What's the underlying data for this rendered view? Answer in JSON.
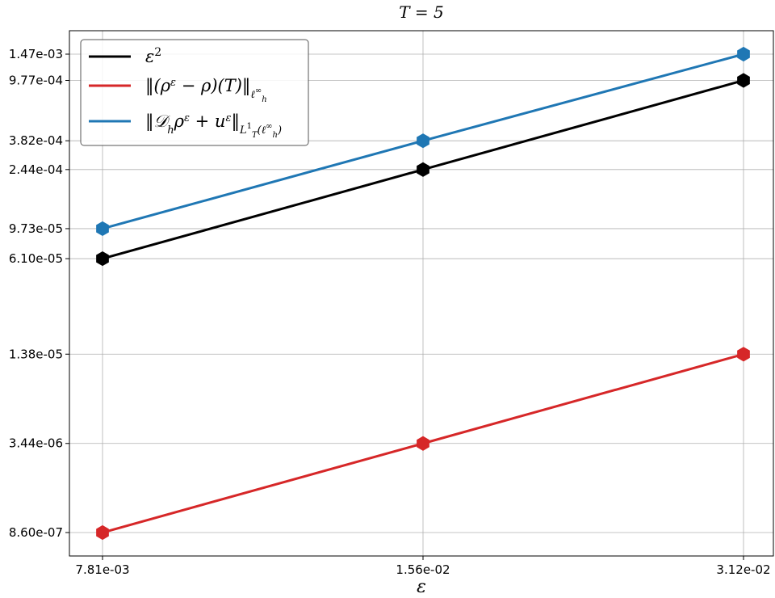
{
  "chart_data": {
    "type": "line",
    "title": "T = 5",
    "xlabel": "ε",
    "ylabel": "",
    "xscale": "log",
    "yscale": "log",
    "x": [
      0.0078125,
      0.015625,
      0.03125
    ],
    "x_tick_labels": [
      "7.81e-03",
      "1.56e-02",
      "3.12e-02"
    ],
    "y_ticks": [
      8.6e-07,
      3.44e-06,
      1.38e-05,
      6.1e-05,
      9.73e-05,
      0.000244,
      0.000382,
      0.000977,
      0.00147
    ],
    "y_tick_labels": [
      "8.60e-07",
      "3.44e-06",
      "1.38e-05",
      "6.10e-05",
      "9.73e-05",
      "2.44e-04",
      "3.82e-04",
      "9.77e-04",
      "1.47e-03"
    ],
    "grid": true,
    "legend_position": "top-left",
    "series": [
      {
        "name": "ε²",
        "color": "#000000",
        "values": [
          6.1e-05,
          0.000244,
          0.000977
        ]
      },
      {
        "name": "‖(ρ^ε − ρ)(T)‖_{ℓ_h^∞}",
        "color": "#d62728",
        "values": [
          8.6e-07,
          3.44e-06,
          1.38e-05
        ]
      },
      {
        "name": "‖D_h ρ^ε + u^ε‖_{L_T^1(ℓ_h^∞)}",
        "color": "#1f77b4",
        "values": [
          9.73e-05,
          0.000382,
          0.00147
        ]
      }
    ]
  }
}
